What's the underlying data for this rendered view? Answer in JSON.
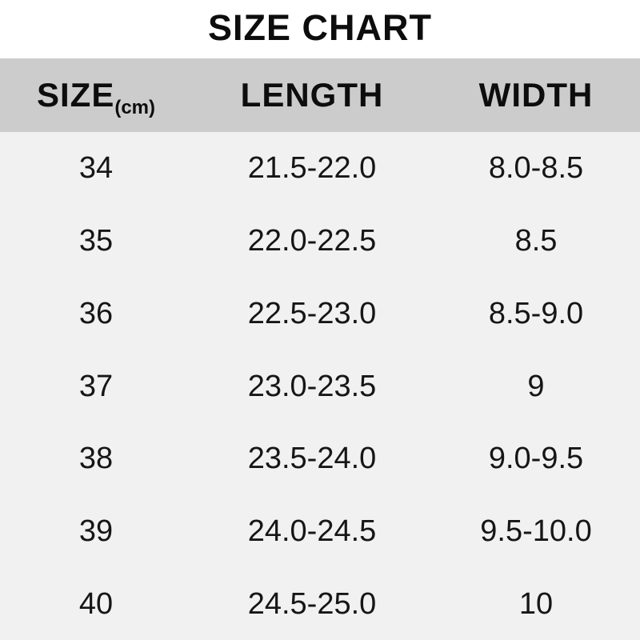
{
  "title": "SIZE CHART",
  "chart_data": {
    "type": "table",
    "title": "SIZE CHART",
    "unit": "cm",
    "header": {
      "size_label": "SIZE",
      "size_unit": "(cm)",
      "length_label": "LENGTH",
      "width_label": "WIDTH"
    },
    "columns": [
      "SIZE (cm)",
      "LENGTH",
      "WIDTH"
    ],
    "rows": [
      {
        "size": "34",
        "length": "21.5-22.0",
        "width": "8.0-8.5"
      },
      {
        "size": "35",
        "length": "22.0-22.5",
        "width": "8.5"
      },
      {
        "size": "36",
        "length": "22.5-23.0",
        "width": "8.5-9.0"
      },
      {
        "size": "37",
        "length": "23.0-23.5",
        "width": "9"
      },
      {
        "size": "38",
        "length": "23.5-24.0",
        "width": "9.0-9.5"
      },
      {
        "size": "39",
        "length": "24.0-24.5",
        "width": "9.5-10.0"
      },
      {
        "size": "40",
        "length": "24.5-25.0",
        "width": "10"
      }
    ]
  },
  "colors": {
    "page_bg": "#ffffff",
    "header_bg": "#cccccc",
    "body_bg": "#f1f1f1",
    "text": "#111111"
  }
}
